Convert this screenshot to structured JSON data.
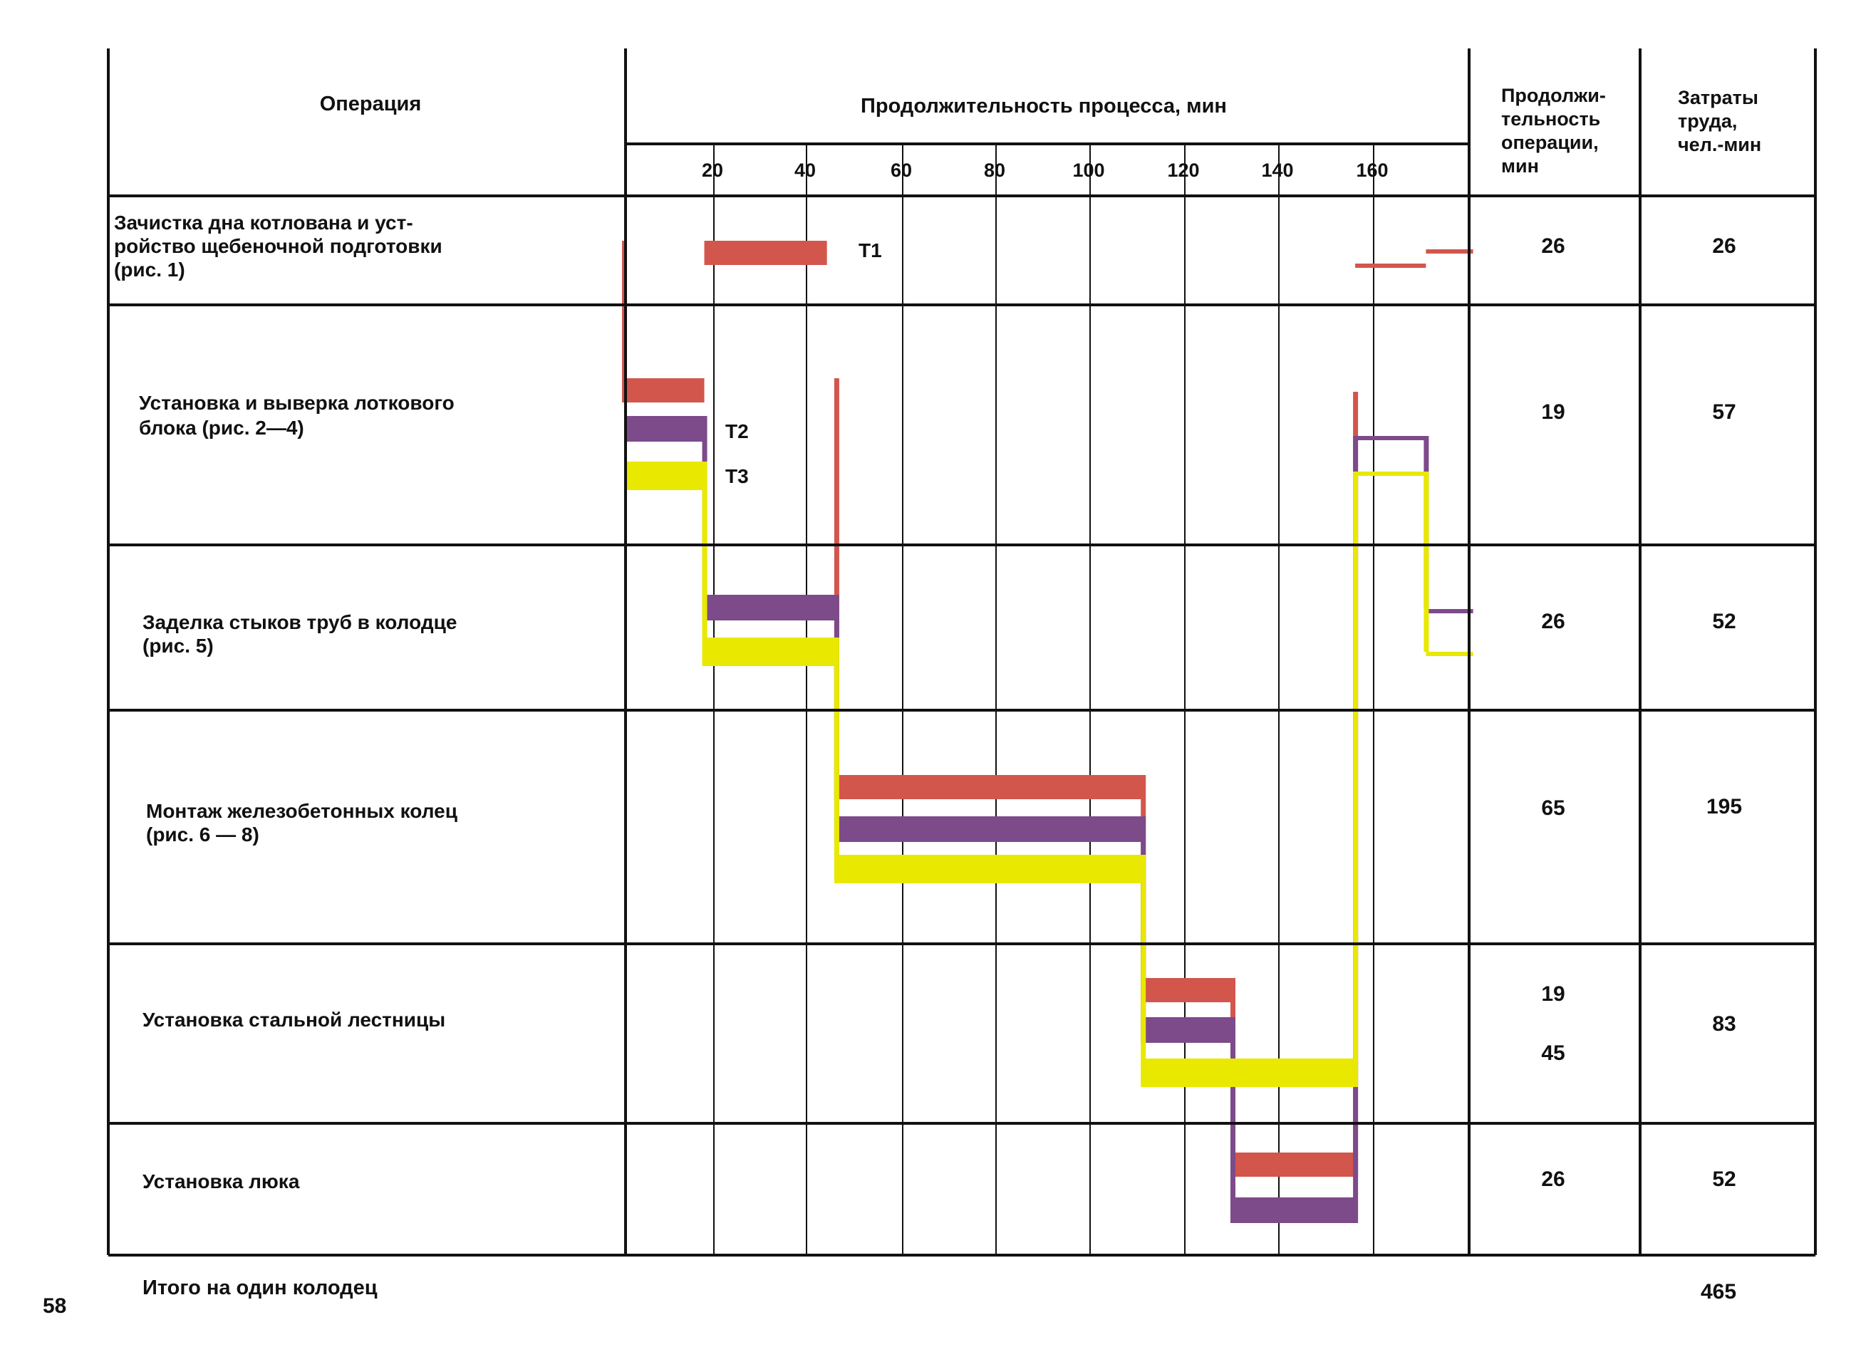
{
  "headers": {
    "operation": "Операция",
    "duration_title": "Продолжительность процесса, мин",
    "op_duration": [
      "Продолжи-",
      "тельность",
      "операции,",
      "мин"
    ],
    "labor": [
      "Затраты",
      "труда,",
      "чел.-мин"
    ]
  },
  "rows": [
    {
      "operation": [
        "Зачистка дна котлована и уст-",
        "ройство щебеночной подготовки",
        "(рис. 1)"
      ],
      "duration": [
        "26"
      ],
      "labor": "26"
    },
    {
      "operation": [
        "Установка и выверка лоткового",
        "блока    (рис. 2—4)"
      ],
      "duration": [
        "19"
      ],
      "labor": "57"
    },
    {
      "operation": [
        "Заделка стыков труб в колодце",
        "(рис. 5)"
      ],
      "duration": [
        "26"
      ],
      "labor": "52"
    },
    {
      "operation": [
        "Монтаж железобетонных колец",
        "(рис. 6  —  8)"
      ],
      "duration": [
        "65"
      ],
      "labor": "195"
    },
    {
      "operation": [
        "Установка стальной лестницы"
      ],
      "duration": [
        "19",
        "45"
      ],
      "labor": "83"
    },
    {
      "operation": [
        "Установка люка"
      ],
      "duration": [
        "26"
      ],
      "labor": "52"
    }
  ],
  "footer": {
    "total_label": "Итого на один колодец",
    "total_value": "465",
    "page_number": "58"
  },
  "colors": {
    "T1": "#d2564c",
    "T2": "#7d4a8a",
    "T3": "#e8e800"
  },
  "chart_data": {
    "type": "gantt",
    "title": "Продолжительность процесса, мин",
    "xlabel": "мин",
    "x_ticks": [
      20,
      40,
      60,
      80,
      100,
      120,
      140,
      160
    ],
    "xlim": [
      0,
      180
    ],
    "grid": true,
    "series": [
      {
        "name": "Т1",
        "color": "#d2564c",
        "tasks": [
          {
            "row": 0,
            "start": 17,
            "end": 43
          },
          {
            "row": 1,
            "start": 0,
            "end": 17
          },
          {
            "row": 3,
            "start": 45,
            "end": 110
          },
          {
            "row": 4,
            "start": 110,
            "end": 129
          },
          {
            "row": 5,
            "start": 129,
            "end": 155
          },
          {
            "row": 1,
            "start": 155,
            "end": 170
          },
          {
            "row": 0,
            "start": 170,
            "end": 180
          }
        ]
      },
      {
        "name": "Т2",
        "color": "#7d4a8a",
        "tasks": [
          {
            "row": 1,
            "start": 0,
            "end": 17
          },
          {
            "row": 2,
            "start": 17,
            "end": 45
          },
          {
            "row": 3,
            "start": 45,
            "end": 110
          },
          {
            "row": 4,
            "start": 110,
            "end": 129
          },
          {
            "row": 5,
            "start": 129,
            "end": 155
          },
          {
            "row": 1,
            "start": 155,
            "end": 170
          },
          {
            "row": 2,
            "start": 170,
            "end": 180
          }
        ]
      },
      {
        "name": "Т3",
        "color": "#e8e800",
        "tasks": [
          {
            "row": 1,
            "start": 0,
            "end": 17
          },
          {
            "row": 2,
            "start": 17,
            "end": 45
          },
          {
            "row": 3,
            "start": 45,
            "end": 110
          },
          {
            "row": 4,
            "start": 110,
            "end": 155
          },
          {
            "row": 1,
            "start": 155,
            "end": 170
          },
          {
            "row": 2,
            "start": 170,
            "end": 180
          }
        ]
      }
    ]
  }
}
